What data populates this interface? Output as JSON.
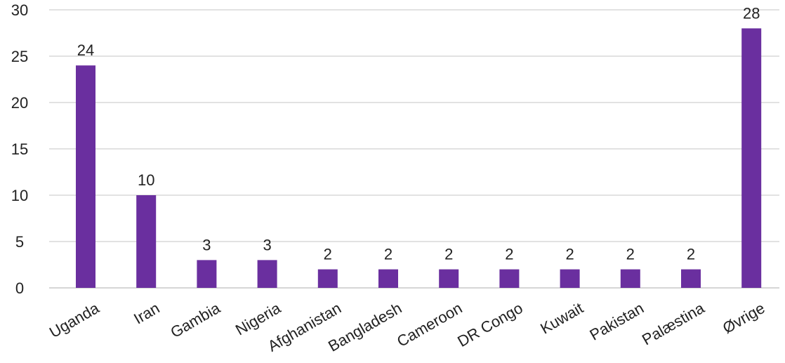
{
  "chart_data": {
    "type": "bar",
    "categories": [
      "Uganda",
      "Iran",
      "Gambia",
      "Nigeria",
      "Afghanistan",
      "Bangladesh",
      "Cameroon",
      "DR Congo",
      "Kuwait",
      "Pakistan",
      "Palæstina",
      "Øvrige"
    ],
    "values": [
      24,
      10,
      3,
      3,
      2,
      2,
      2,
      2,
      2,
      2,
      2,
      28
    ],
    "data_labels": [
      "24",
      "10",
      "3",
      "3",
      "2",
      "2",
      "2",
      "2",
      "2",
      "2",
      "2",
      "28"
    ],
    "ylim": [
      0,
      30
    ],
    "yticks": [
      "0",
      "5",
      "10",
      "15",
      "20",
      "25",
      "30"
    ],
    "bar_color": "#6a2f9f",
    "grid": true,
    "title": "",
    "xlabel": "",
    "ylabel": ""
  }
}
